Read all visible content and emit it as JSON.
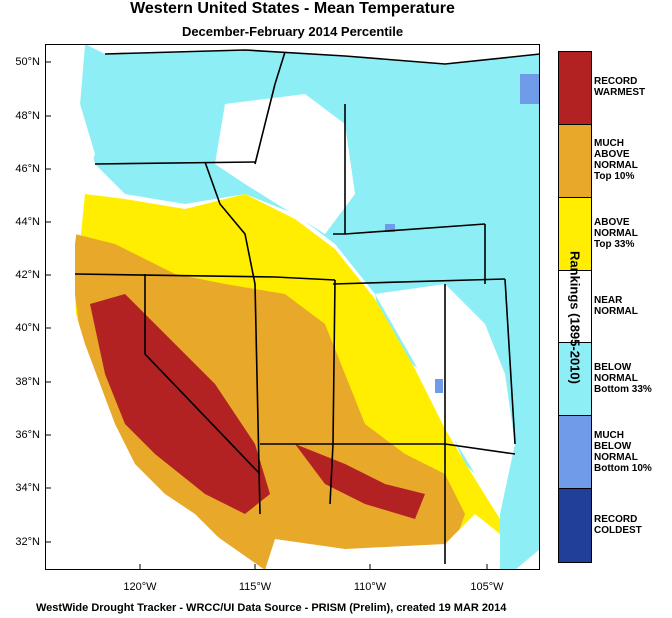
{
  "title": "Western United States - Mean Temperature",
  "subtitle": "December-February 2014 Percentile",
  "lat_labels": [
    "50°N",
    "48°N",
    "46°N",
    "44°N",
    "42°N",
    "40°N",
    "38°N",
    "36°N",
    "34°N",
    "32°N"
  ],
  "lon_labels": [
    "120°W",
    "115°W",
    "110°W",
    "105°W"
  ],
  "legend": {
    "title": "Rankings (1895-2010)",
    "items": [
      {
        "label_lines": [
          "RECORD",
          "WARMEST"
        ],
        "color": "#b22222"
      },
      {
        "label_lines": [
          "MUCH",
          "ABOVE",
          "NORMAL",
          "Top 10%"
        ],
        "color": "#e8a82a"
      },
      {
        "label_lines": [
          "ABOVE",
          "NORMAL",
          "Top 33%"
        ],
        "color": "#ffee00"
      },
      {
        "label_lines": [
          "NEAR",
          "NORMAL"
        ],
        "color": "#ffffff"
      },
      {
        "label_lines": [
          "BELOW",
          "NORMAL",
          "Bottom 33%"
        ],
        "color": "#8eeef5"
      },
      {
        "label_lines": [
          "MUCH",
          "BELOW",
          "NORMAL",
          "Bottom 10%"
        ],
        "color": "#6f9be8"
      },
      {
        "label_lines": [
          "RECORD",
          "COLDEST"
        ],
        "color": "#1f3f99"
      }
    ]
  },
  "footer": "WestWide Drought Tracker - WRCC/UI  Data Source - PRISM (Prelim), created 19 MAR 2014"
}
